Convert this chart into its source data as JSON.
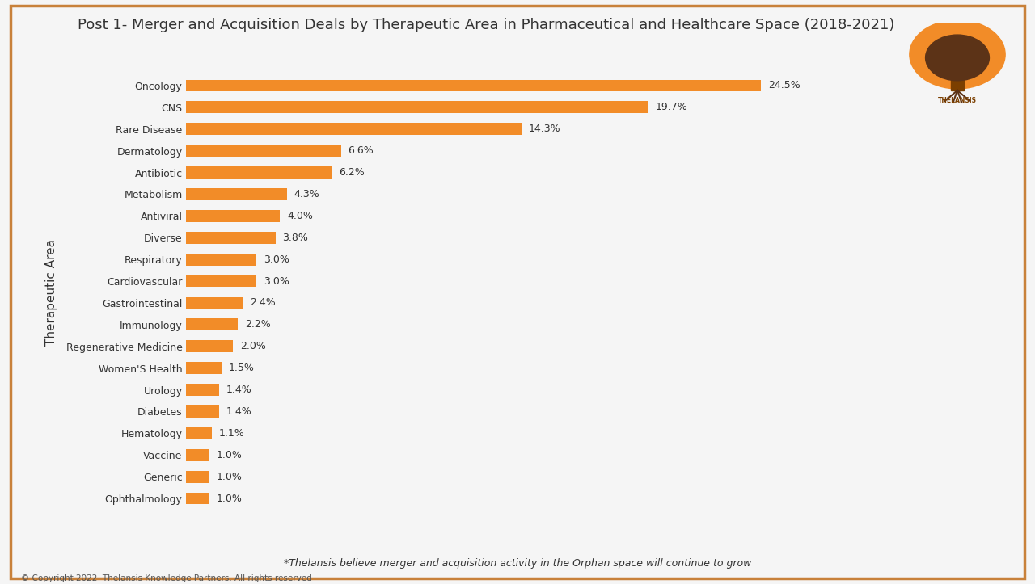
{
  "title": "Post 1- Merger and Acquisition Deals by Therapeutic Area in Pharmaceutical and Healthcare Space (2018-2021)",
  "categories": [
    "Oncology",
    "CNS",
    "Rare Disease",
    "Dermatology",
    "Antibiotic",
    "Metabolism",
    "Antiviral",
    "Diverse",
    "Respiratory",
    "Cardiovascular",
    "Gastrointestinal",
    "Immunology",
    "Regenerative Medicine",
    "Women'S Health",
    "Urology",
    "Diabetes",
    "Hematology",
    "Vaccine",
    "Generic",
    "Ophthalmology"
  ],
  "values": [
    24.5,
    19.7,
    14.3,
    6.6,
    6.2,
    4.3,
    4.0,
    3.8,
    3.0,
    3.0,
    2.4,
    2.2,
    2.0,
    1.5,
    1.4,
    1.4,
    1.1,
    1.0,
    1.0,
    1.0
  ],
  "bar_color": "#F28C28",
  "ylabel": "Therapeutic Area",
  "footnote": "*Thelansis believe merger and acquisition activity in the Orphan space will continue to grow",
  "copyright": "© Copyright 2022  Thelansis Knowledge Partners. All rights reserved",
  "background_color": "#f5f5f5",
  "border_color": "#c8813a",
  "title_fontsize": 13,
  "label_fontsize": 9,
  "value_fontsize": 9,
  "ylabel_fontsize": 11
}
